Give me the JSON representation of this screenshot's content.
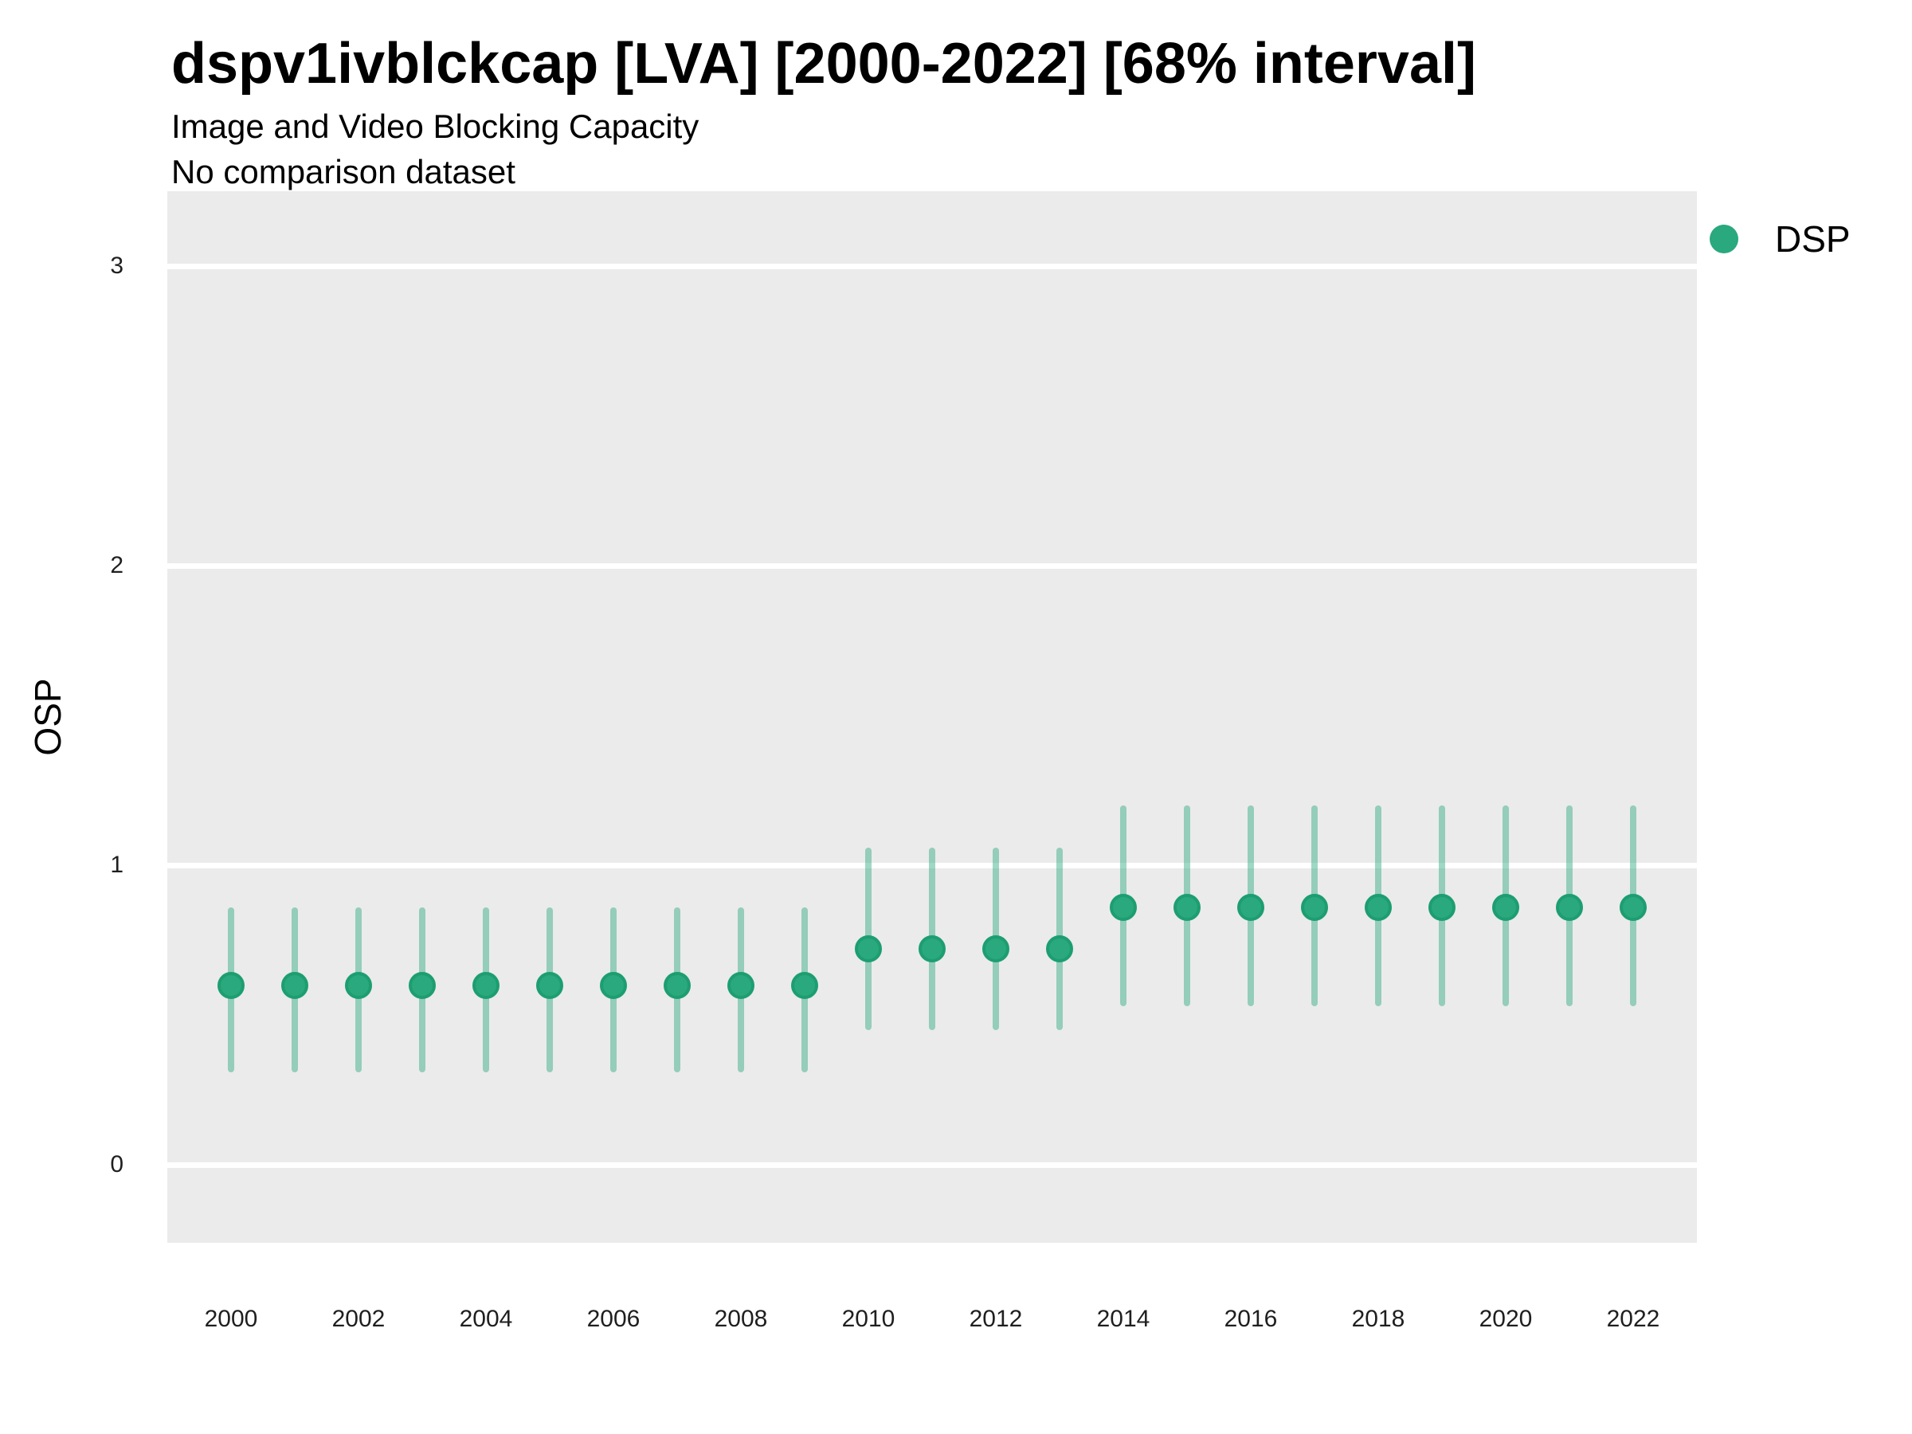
{
  "header": {
    "title": "dspv1ivblckcap [LVA] [2000-2022] [68% interval]",
    "subtitle": "Image and Video Blocking Capacity",
    "note": "No comparison dataset"
  },
  "colors": {
    "panel_background": "#EBEBEB",
    "gridline": "#FFFFFF",
    "point_fill": "#2aa87e",
    "point_stroke": "#1d9e71",
    "interval_color": "rgba(42,168,126,0.45)",
    "text": "#000000",
    "tick_text": "#1f1f1f"
  },
  "chart_data": {
    "type": "pointrange",
    "title": "dspv1ivblckcap [LVA] [2000-2022] [68% interval]",
    "subtitle": "Image and Video Blocking Capacity",
    "note": "No comparison dataset",
    "interval_level": "68%",
    "xlabel": "",
    "ylabel": "OSP",
    "xlim": [
      1999,
      2023
    ],
    "ylim": [
      -0.26,
      3.25
    ],
    "yticks": [
      0,
      1,
      2,
      3
    ],
    "xticks": [
      2000,
      2002,
      2004,
      2006,
      2008,
      2010,
      2012,
      2014,
      2016,
      2018,
      2020,
      2022
    ],
    "grid": "horizontal-only",
    "legend_position": "right-top",
    "legend": [
      {
        "label": "DSP",
        "color": "#2aa87e"
      }
    ],
    "series": [
      {
        "name": "DSP",
        "points": [
          {
            "x": 2000,
            "y": 0.6,
            "lo": 0.31,
            "hi": 0.86
          },
          {
            "x": 2001,
            "y": 0.6,
            "lo": 0.31,
            "hi": 0.86
          },
          {
            "x": 2002,
            "y": 0.6,
            "lo": 0.31,
            "hi": 0.86
          },
          {
            "x": 2003,
            "y": 0.6,
            "lo": 0.31,
            "hi": 0.86
          },
          {
            "x": 2004,
            "y": 0.6,
            "lo": 0.31,
            "hi": 0.86
          },
          {
            "x": 2005,
            "y": 0.6,
            "lo": 0.31,
            "hi": 0.86
          },
          {
            "x": 2006,
            "y": 0.6,
            "lo": 0.31,
            "hi": 0.86
          },
          {
            "x": 2007,
            "y": 0.6,
            "lo": 0.31,
            "hi": 0.86
          },
          {
            "x": 2008,
            "y": 0.6,
            "lo": 0.31,
            "hi": 0.86
          },
          {
            "x": 2009,
            "y": 0.6,
            "lo": 0.31,
            "hi": 0.86
          },
          {
            "x": 2010,
            "y": 0.72,
            "lo": 0.45,
            "hi": 1.06
          },
          {
            "x": 2011,
            "y": 0.72,
            "lo": 0.45,
            "hi": 1.06
          },
          {
            "x": 2012,
            "y": 0.72,
            "lo": 0.45,
            "hi": 1.06
          },
          {
            "x": 2013,
            "y": 0.72,
            "lo": 0.45,
            "hi": 1.06
          },
          {
            "x": 2014,
            "y": 0.86,
            "lo": 0.53,
            "hi": 1.2
          },
          {
            "x": 2015,
            "y": 0.86,
            "lo": 0.53,
            "hi": 1.2
          },
          {
            "x": 2016,
            "y": 0.86,
            "lo": 0.53,
            "hi": 1.2
          },
          {
            "x": 2017,
            "y": 0.86,
            "lo": 0.53,
            "hi": 1.2
          },
          {
            "x": 2018,
            "y": 0.86,
            "lo": 0.53,
            "hi": 1.2
          },
          {
            "x": 2019,
            "y": 0.86,
            "lo": 0.53,
            "hi": 1.2
          },
          {
            "x": 2020,
            "y": 0.86,
            "lo": 0.53,
            "hi": 1.2
          },
          {
            "x": 2021,
            "y": 0.86,
            "lo": 0.53,
            "hi": 1.2
          },
          {
            "x": 2022,
            "y": 0.86,
            "lo": 0.53,
            "hi": 1.2
          }
        ]
      }
    ]
  }
}
